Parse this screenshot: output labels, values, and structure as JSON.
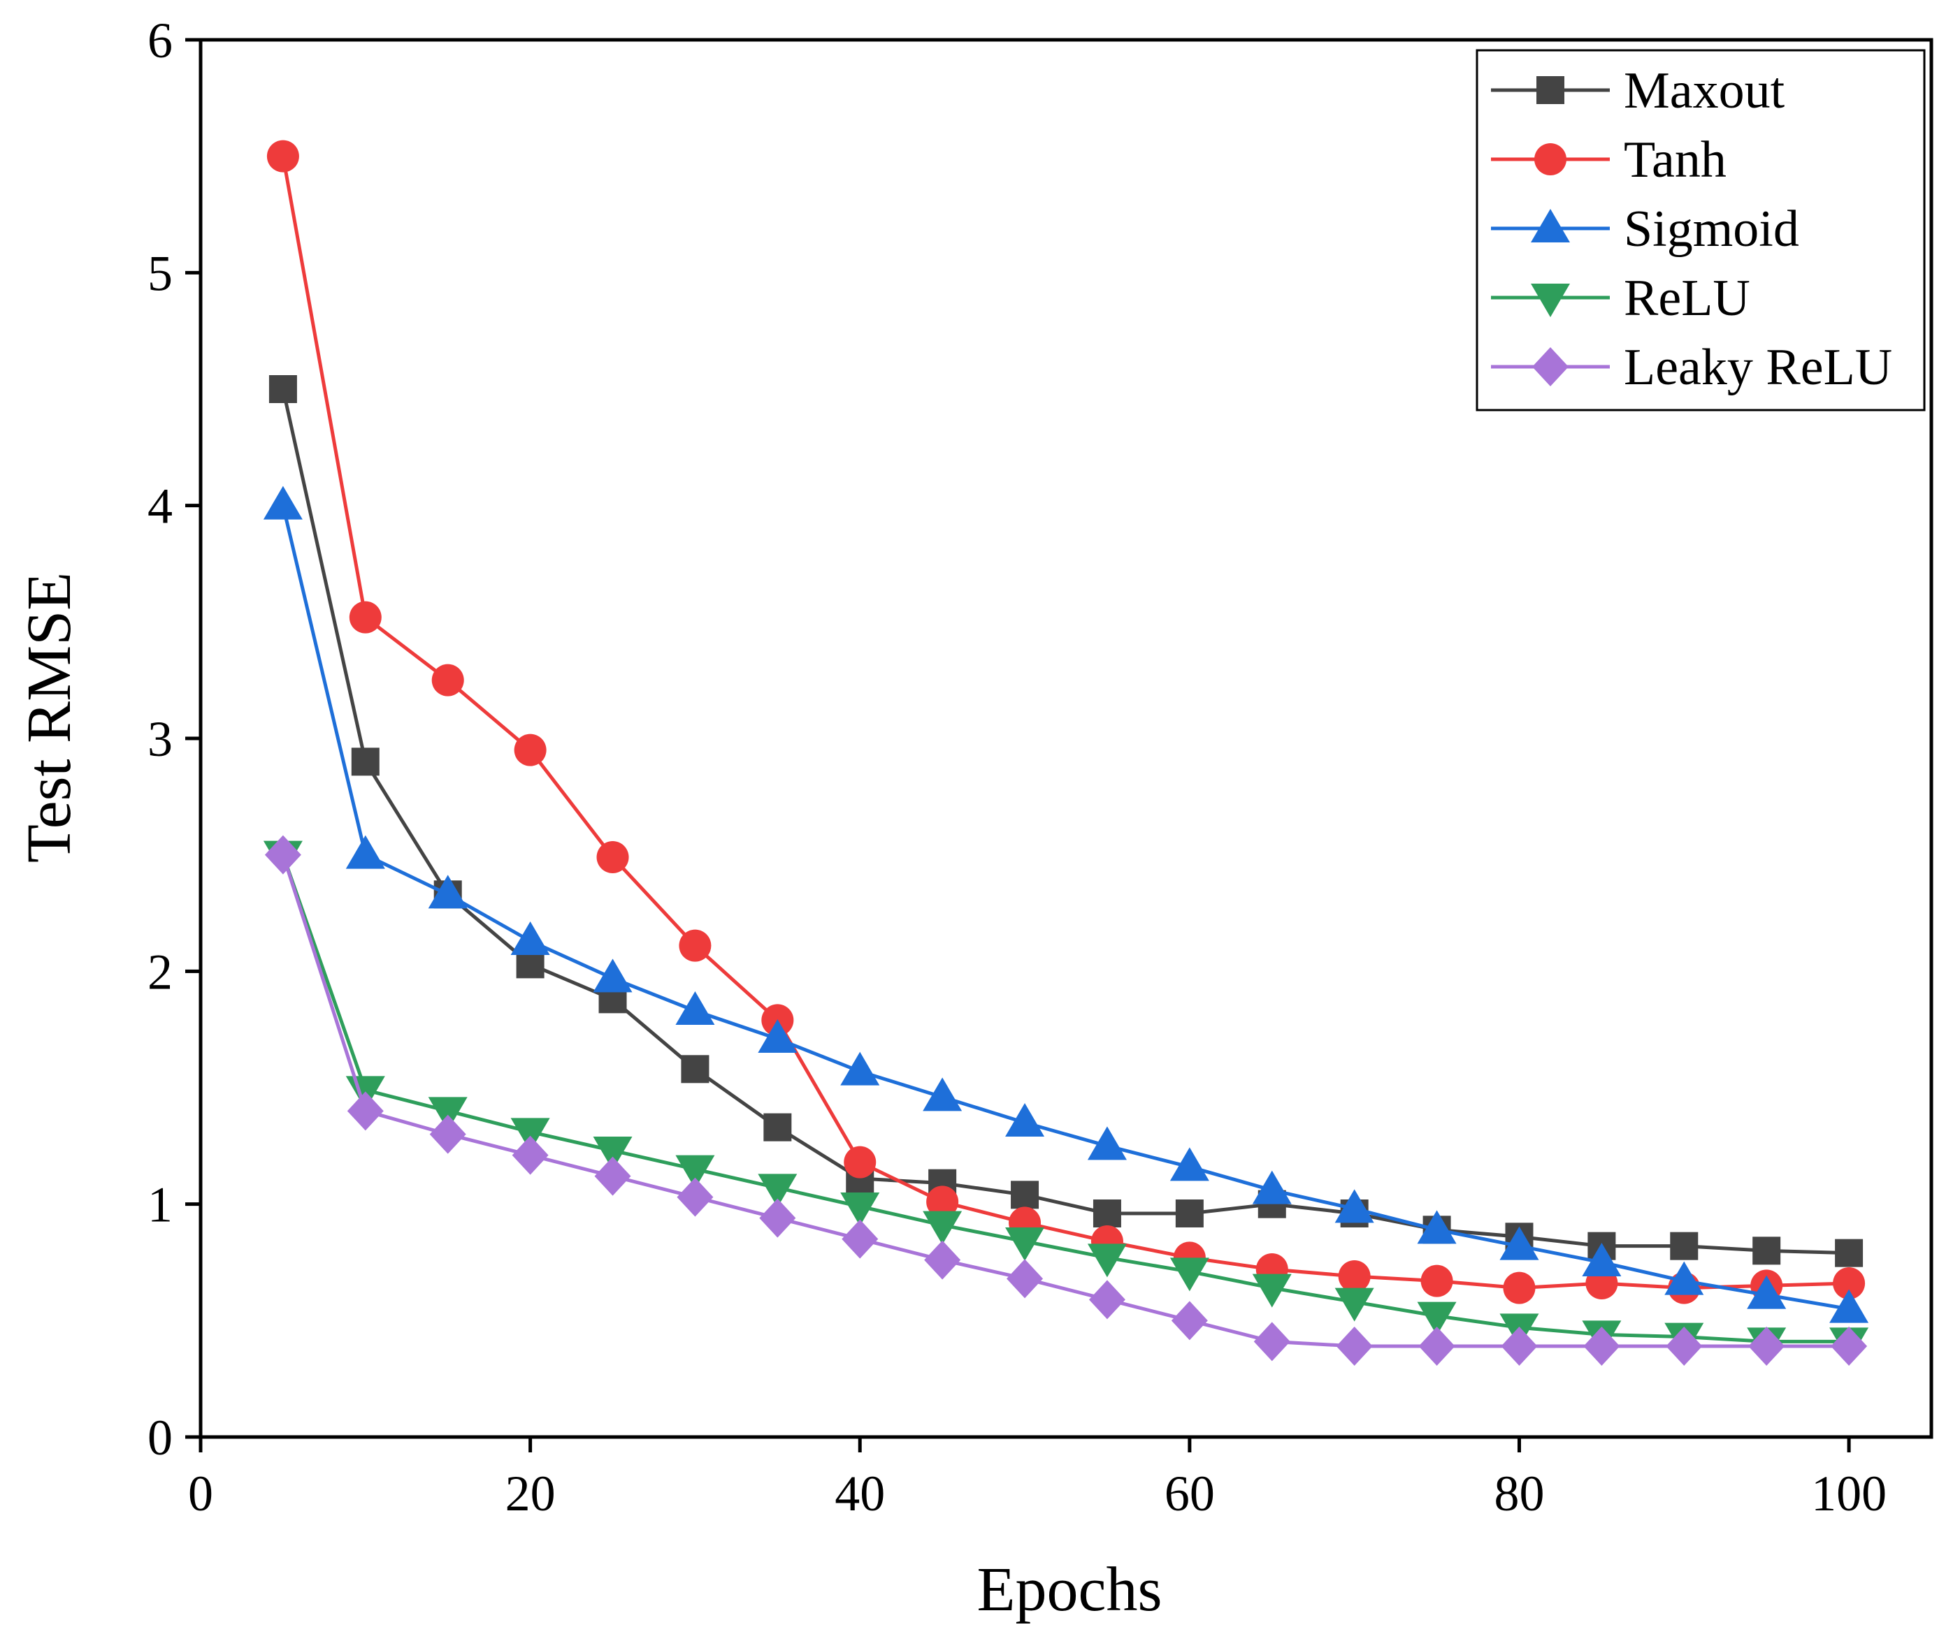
{
  "chart_data": {
    "type": "line",
    "title": "",
    "xlabel": "Epochs",
    "ylabel": "Test RMSE",
    "xlim": [
      0,
      105
    ],
    "ylim": [
      0,
      6
    ],
    "xticks": [
      0,
      20,
      40,
      60,
      80,
      100
    ],
    "yticks": [
      0,
      1,
      2,
      3,
      4,
      5,
      6
    ],
    "grid": false,
    "legend_position": "top-right",
    "x": [
      5,
      10,
      15,
      20,
      25,
      30,
      35,
      40,
      45,
      50,
      55,
      60,
      65,
      70,
      75,
      80,
      85,
      90,
      95,
      100
    ],
    "series": [
      {
        "name": "Maxout",
        "color": "#444444",
        "marker": "square",
        "values": [
          4.5,
          2.9,
          2.33,
          2.03,
          1.88,
          1.58,
          1.33,
          1.11,
          1.09,
          1.04,
          0.96,
          0.96,
          1.0,
          0.96,
          0.89,
          0.86,
          0.82,
          0.82,
          0.8,
          0.79
        ]
      },
      {
        "name": "Tanh",
        "color": "#ee3b3b",
        "marker": "circle",
        "values": [
          5.5,
          3.52,
          3.25,
          2.95,
          2.49,
          2.11,
          1.79,
          1.18,
          1.01,
          0.92,
          0.84,
          0.77,
          0.72,
          0.69,
          0.67,
          0.64,
          0.66,
          0.64,
          0.65,
          0.66
        ]
      },
      {
        "name": "Sigmoid",
        "color": "#1e6fd9",
        "marker": "triangle-up",
        "values": [
          4.0,
          2.5,
          2.33,
          2.13,
          1.97,
          1.83,
          1.71,
          1.57,
          1.46,
          1.35,
          1.25,
          1.16,
          1.06,
          0.98,
          0.89,
          0.82,
          0.75,
          0.67,
          0.61,
          0.55
        ]
      },
      {
        "name": "ReLU",
        "color": "#2e9e5b",
        "marker": "triangle-down",
        "values": [
          2.5,
          1.49,
          1.4,
          1.31,
          1.23,
          1.15,
          1.07,
          0.99,
          0.91,
          0.84,
          0.77,
          0.71,
          0.64,
          0.58,
          0.52,
          0.47,
          0.44,
          0.43,
          0.41,
          0.41
        ]
      },
      {
        "name": "Leaky ReLU",
        "color": "#a874d8",
        "marker": "diamond",
        "values": [
          2.5,
          1.4,
          1.3,
          1.21,
          1.12,
          1.03,
          0.94,
          0.85,
          0.76,
          0.68,
          0.59,
          0.5,
          0.41,
          0.39,
          0.39,
          0.39,
          0.39,
          0.39,
          0.39,
          0.39
        ]
      }
    ]
  }
}
